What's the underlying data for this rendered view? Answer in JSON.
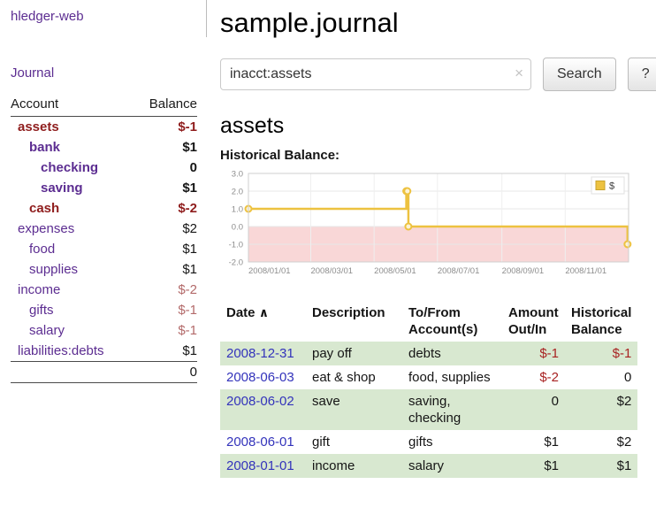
{
  "colors": {
    "link_purple": "#5c2d91",
    "date_link_blue": "#3333bb",
    "negative_strong": "#8f1d1d",
    "negative_soft": "#b36a6a",
    "negative_amount": "#a82222",
    "row_shade_green": "#d8e8d0"
  },
  "sidebar": {
    "app_title": "hledger-web",
    "nav": {
      "journal": "Journal"
    },
    "accounts": {
      "headers": {
        "account": "Account",
        "balance": "Balance"
      },
      "rows": [
        {
          "name": "assets",
          "level": 0,
          "bold": true,
          "name_color": "negative-strong",
          "balance": "$-1",
          "balance_bold": true,
          "balance_color": "negative-strong"
        },
        {
          "name": "bank",
          "level": 1,
          "bold": true,
          "name_color": "link",
          "balance": "$1",
          "balance_bold": true,
          "balance_color": "normal"
        },
        {
          "name": "checking",
          "level": 2,
          "bold": true,
          "name_color": "link",
          "balance": "0",
          "balance_bold": true,
          "balance_color": "normal"
        },
        {
          "name": "saving",
          "level": 2,
          "bold": true,
          "name_color": "link",
          "balance": "$1",
          "balance_bold": true,
          "balance_color": "normal"
        },
        {
          "name": "cash",
          "level": 1,
          "bold": true,
          "name_color": "negative-strong",
          "balance": "$-2",
          "balance_bold": true,
          "balance_color": "negative-strong"
        },
        {
          "name": "expenses",
          "level": 0,
          "bold": false,
          "name_color": "link",
          "balance": "$2",
          "balance_bold": false,
          "balance_color": "normal"
        },
        {
          "name": "food",
          "level": 1,
          "bold": false,
          "name_color": "link",
          "balance": "$1",
          "balance_bold": false,
          "balance_color": "normal"
        },
        {
          "name": "supplies",
          "level": 1,
          "bold": false,
          "name_color": "link",
          "balance": "$1",
          "balance_bold": false,
          "balance_color": "normal"
        },
        {
          "name": "income",
          "level": 0,
          "bold": false,
          "name_color": "link",
          "balance": "$-2",
          "balance_bold": false,
          "balance_color": "negative-soft"
        },
        {
          "name": "gifts",
          "level": 1,
          "bold": false,
          "name_color": "link",
          "balance": "$-1",
          "balance_bold": false,
          "balance_color": "negative-soft"
        },
        {
          "name": "salary",
          "level": 1,
          "bold": false,
          "name_color": "link",
          "balance": "$-1",
          "balance_bold": false,
          "balance_color": "negative-soft"
        },
        {
          "name": "liabilities:debts",
          "level": 0,
          "bold": false,
          "name_color": "link",
          "balance": "$1",
          "balance_bold": false,
          "balance_color": "normal"
        }
      ],
      "total": "0"
    }
  },
  "main": {
    "title": "sample.journal",
    "search": {
      "value": "inacct:assets",
      "clear_icon": "×",
      "button_label": "Search",
      "help_label": "?"
    },
    "account_heading": "assets",
    "chart_title": "Historical Balance:"
  },
  "chart_data": {
    "type": "line",
    "step": true,
    "title": "Historical Balance",
    "series": [
      {
        "name": "$",
        "color": "#edc240",
        "points": [
          [
            "2008-01-01",
            1
          ],
          [
            "2008-06-01",
            2
          ],
          [
            "2008-06-02",
            2
          ],
          [
            "2008-06-03",
            0
          ],
          [
            "2008-12-31",
            -1
          ]
        ]
      }
    ],
    "xlim": [
      "2008-01-01",
      "2009-01-01"
    ],
    "ylim": [
      -2,
      3
    ],
    "x_ticks": [
      "2008/01/01",
      "2008/03/01",
      "2008/05/01",
      "2008/07/01",
      "2008/09/01",
      "2008/11/01"
    ],
    "y_ticks": [
      3.0,
      2.0,
      1.0,
      0.0,
      -1.0,
      -2.0
    ],
    "grid": true,
    "legend_position": "top-right",
    "negative_region_color": "#f9d7d7",
    "marker_fill": "#fdf3d4",
    "legend": {
      "label": "$",
      "position": "top-right",
      "swatch_border": "#c8a32c"
    }
  },
  "register": {
    "headers": {
      "date": "Date",
      "sort_indicator": "∧",
      "description": "Description",
      "accounts": "To/From Account(s)",
      "amount": "Amount Out/In",
      "balance": "Historical Balance"
    },
    "rows": [
      {
        "date": "2008-12-31",
        "description": "pay off",
        "accounts": "debts",
        "amount": "$-1",
        "amount_negative": true,
        "balance": "$-1",
        "balance_negative": true,
        "shaded": true
      },
      {
        "date": "2008-06-03",
        "description": "eat & shop",
        "accounts": "food, supplies",
        "amount": "$-2",
        "amount_negative": true,
        "balance": "0",
        "balance_negative": false,
        "shaded": false
      },
      {
        "date": "2008-06-02",
        "description": "save",
        "accounts": "saving, checking",
        "amount": "0",
        "amount_negative": false,
        "balance": "$2",
        "balance_negative": false,
        "shaded": true
      },
      {
        "date": "2008-06-01",
        "description": "gift",
        "accounts": "gifts",
        "amount": "$1",
        "amount_negative": false,
        "balance": "$2",
        "balance_negative": false,
        "shaded": false
      },
      {
        "date": "2008-01-01",
        "description": "income",
        "accounts": "salary",
        "amount": "$1",
        "amount_negative": false,
        "balance": "$1",
        "balance_negative": false,
        "shaded": true
      }
    ]
  }
}
